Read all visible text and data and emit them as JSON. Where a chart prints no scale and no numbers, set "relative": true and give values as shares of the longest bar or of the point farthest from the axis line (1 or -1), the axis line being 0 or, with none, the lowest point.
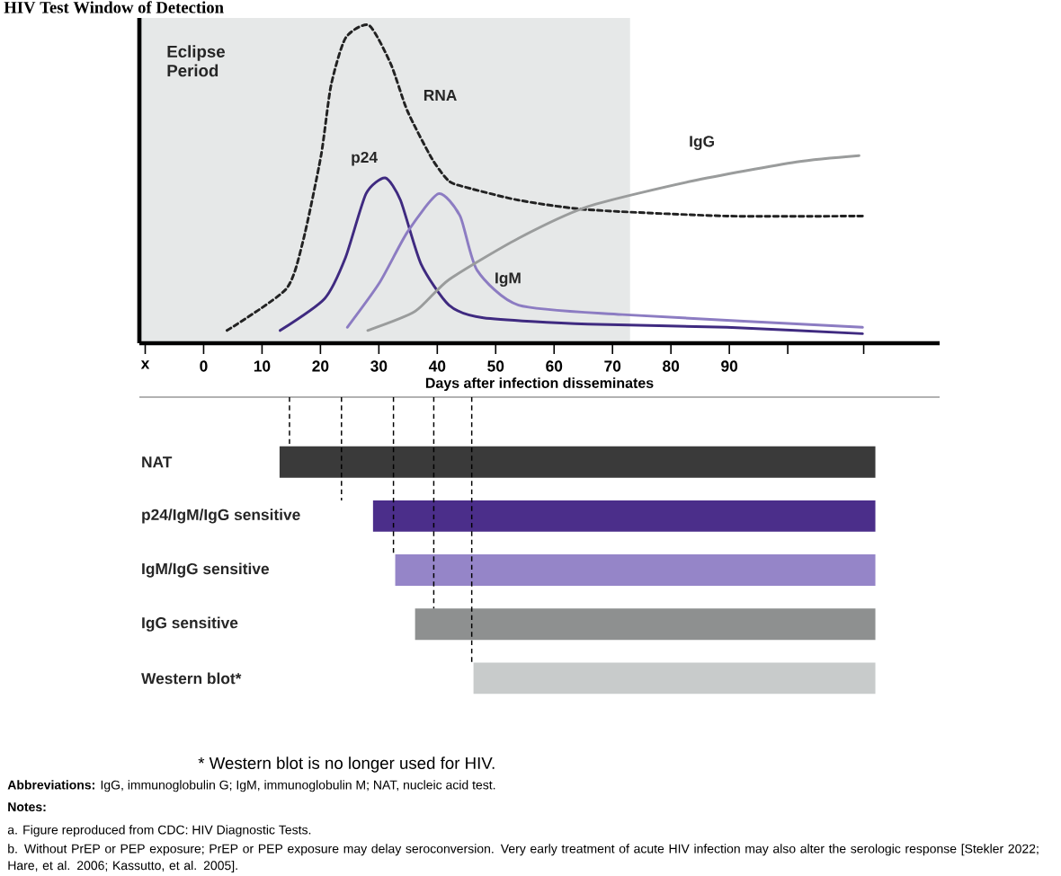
{
  "chart_data": [
    {
      "type": "line",
      "title": "HIV Test Window of Detection",
      "xlabel": "Days after infection disseminates",
      "relative": true,
      "xlim": [
        -11,
        126
      ],
      "xticks": [
        {
          "value": -10,
          "label": "x"
        },
        0,
        10,
        20,
        30,
        40,
        50,
        60,
        70,
        80,
        90,
        {
          "value": 100,
          "label": null
        },
        {
          "value": 113,
          "label": null
        }
      ],
      "bands": [
        {
          "axis": "x",
          "from": -11,
          "to": 73,
          "label": "Eclipse Period",
          "color": "#e6e8e8"
        }
      ],
      "series": [
        {
          "name": "RNA",
          "color": "#222222",
          "line_style": "dashed",
          "x": [
            4.0,
            14.1,
            17.0,
            20.1,
            21.8,
            24.3,
            28.3,
            32.0,
            34.9,
            39.1,
            42.0,
            45.0,
            53.9,
            65.8,
            89.6,
            112.8
          ],
          "values": [
            0.04,
            0.17,
            0.32,
            0.59,
            0.81,
            0.96,
            1.0,
            0.88,
            0.73,
            0.58,
            0.51,
            0.49,
            0.45,
            0.42,
            0.4,
            0.4
          ]
        },
        {
          "name": "p24",
          "color": "#3f2a80",
          "x": [
            13.1,
            20.7,
            24.3,
            27.8,
            31.1,
            33.7,
            37.2,
            42.0,
            47.9,
            65.8,
            89.6,
            112.8
          ],
          "values": [
            0.04,
            0.14,
            0.27,
            0.47,
            0.52,
            0.45,
            0.25,
            0.12,
            0.08,
            0.06,
            0.05,
            0.03
          ]
        },
        {
          "name": "IgM",
          "color": "#8c7cc2",
          "x": [
            24.6,
            30.1,
            34.9,
            40.2,
            43.9,
            46.8,
            53.9,
            71.7,
            112.8
          ],
          "values": [
            0.05,
            0.19,
            0.35,
            0.47,
            0.4,
            0.23,
            0.12,
            0.09,
            0.05
          ]
        },
        {
          "name": "IgG",
          "color": "#9a9c9c",
          "x": [
            28.1,
            36.2,
            42.0,
            53.9,
            65.8,
            83.6,
            101.5,
            112.2
          ],
          "values": [
            0.04,
            0.1,
            0.2,
            0.33,
            0.43,
            0.51,
            0.57,
            0.59
          ]
        }
      ]
    },
    {
      "type": "bar",
      "orientation": "horizontal",
      "tick_labels": "y",
      "xlim": [
        -11,
        126
      ],
      "categories": [
        "NAT",
        "p24/IgM/IgG sensitive",
        "IgM/IgG sensitive",
        "IgG sensitive",
        "Western blot*"
      ],
      "base": [
        13,
        29,
        32.8,
        36.2,
        46.2
      ],
      "values": [
        102,
        86,
        82.2,
        78.8,
        68.8
      ],
      "colors": [
        "#3a3a3a",
        "#4b2e8a",
        "#9585c8",
        "#8e9090",
        "#c8cbcb"
      ],
      "ref_lines": [
        {
          "axis": "x",
          "value": 14.7,
          "line_style": "dashed",
          "color": "#000000"
        },
        {
          "axis": "x",
          "value": 23.6,
          "line_style": "dashed",
          "color": "#000000"
        },
        {
          "axis": "x",
          "value": 32.5,
          "line_style": "dashed",
          "color": "#000000"
        },
        {
          "axis": "x",
          "value": 39.4,
          "line_style": "dashed",
          "color": "#000000"
        },
        {
          "axis": "x",
          "value": 45.9,
          "line_style": "dashed",
          "color": "#000000"
        }
      ],
      "annotations": [
        "* Western blot is no longer used for HIV.",
        "**Abbreviations:** IgG, immunoglobulin G; IgM, immunoglobulin M; NAT, nucleic acid test.",
        "Notes:",
        "a. Figure reproduced from CDC: HIV Diagnostic Tests.",
        "b. Without PrEP or PEP exposure; PrEP or PEP exposure may delay seroconversion. Very early treatment of acute HIV infection may also alter the serologic response [Stekler 2022; Hare, et al. 2006; Kassutto, et al. 2005]."
      ]
    }
  ]
}
